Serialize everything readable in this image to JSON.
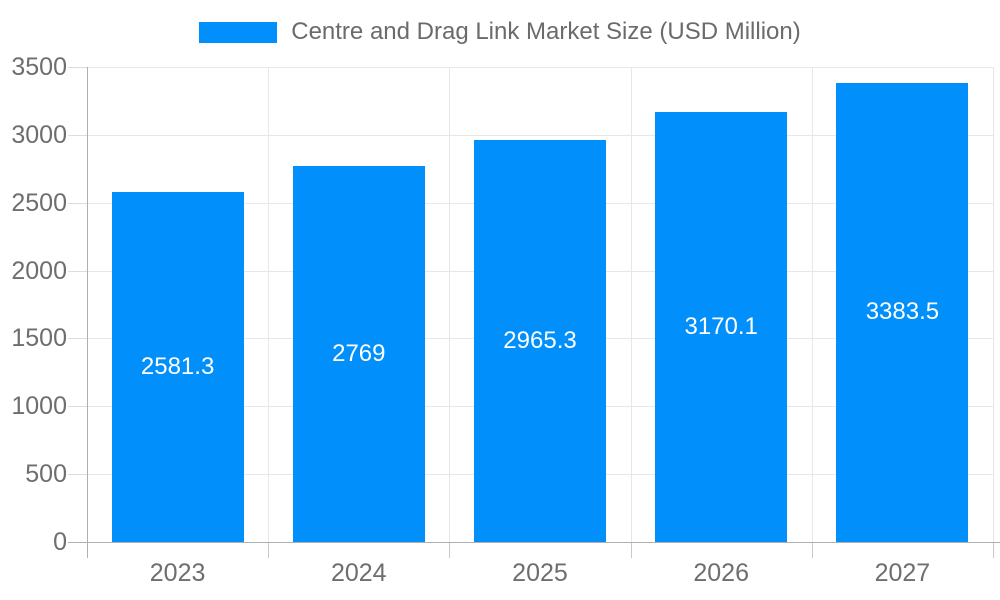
{
  "chart_data": {
    "type": "bar",
    "title": "Centre and Drag Link Market Size (USD Million)",
    "series_name": "Centre and Drag Link Market Size (USD Million)",
    "categories": [
      "2023",
      "2024",
      "2025",
      "2026",
      "2027"
    ],
    "values": [
      2581.3,
      2769,
      2965.3,
      3170.1,
      3383.5
    ],
    "xlabel": "",
    "ylabel": "",
    "ylim": [
      0,
      3500
    ],
    "yticks": [
      0,
      500,
      1000,
      1500,
      2000,
      2500,
      3000,
      3500
    ],
    "grid": true,
    "legend_position": "top",
    "bar_color": "#008FFB",
    "bar_label_color": "#ffffff",
    "axis_label_color": "#6e6e6e",
    "grid_color": "#e7e7e7",
    "axis_line_color": "#b0b0b0"
  },
  "legend": {
    "label": "Centre and Drag Link Market Size (USD Million)",
    "swatch_color": "#008FFB"
  }
}
